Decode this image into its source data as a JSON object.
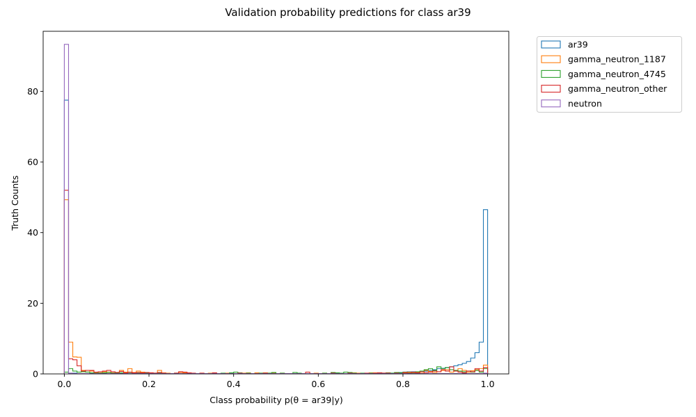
{
  "chart_data": {
    "type": "histogram",
    "title": "Validation probability predictions for class ar39",
    "xlabel": "Class probability p(θ = ar39|y)",
    "ylabel": "Truth Counts",
    "xlim": [
      -0.05,
      1.05
    ],
    "ylim": [
      0,
      97
    ],
    "xticks": [
      "0.0",
      "0.2",
      "0.4",
      "0.6",
      "0.8",
      "1.0"
    ],
    "xtick_values": [
      0.0,
      0.2,
      0.4,
      0.6,
      0.8,
      1.0
    ],
    "yticks": [
      "0",
      "20",
      "40",
      "60",
      "80"
    ],
    "ytick_values": [
      0,
      20,
      40,
      60,
      80
    ],
    "grid": false,
    "legend_position": "outside-top-right",
    "bin_width": 0.01,
    "series": [
      {
        "name": "ar39",
        "color": "#1f77b4",
        "values": [
          77.5,
          0.2,
          0.2,
          0.1,
          0.1,
          0.1,
          0.1,
          0.1,
          0.1,
          0.1,
          0.1,
          0.1,
          0.1,
          0.1,
          0.1,
          0.1,
          0.1,
          0.1,
          0.1,
          0.1,
          0.1,
          0.1,
          0.1,
          0.1,
          0.1,
          0.1,
          0.1,
          0.1,
          0.1,
          0.1,
          0.1,
          0.1,
          0.1,
          0.1,
          0.1,
          0.1,
          0.1,
          0.1,
          0.1,
          0.1,
          0.1,
          0.1,
          0.1,
          0.1,
          0.1,
          0.1,
          0.1,
          0.1,
          0.1,
          0.1,
          0.1,
          0.1,
          0.1,
          0.1,
          0.1,
          0.1,
          0.1,
          0.1,
          0.1,
          0.1,
          0.1,
          0.1,
          0.1,
          0.1,
          0.1,
          0.1,
          0.1,
          0.1,
          0.1,
          0.1,
          0.1,
          0.1,
          0.1,
          0.1,
          0.2,
          0.2,
          0.2,
          0.2,
          0.3,
          0.4,
          0.5,
          0.6,
          0.6,
          0.5,
          0.7,
          0.8,
          1.0,
          1.2,
          1.5,
          1.6,
          1.8,
          2.0,
          2.3,
          2.6,
          3.0,
          3.5,
          4.5,
          6.0,
          9.0,
          46.5
        ]
      },
      {
        "name": "gamma_neutron_1187",
        "color": "#ff7f0e",
        "values": [
          49.3,
          9.0,
          4.8,
          4.7,
          1.0,
          0.5,
          0.8,
          0.2,
          0.3,
          0.6,
          0.5,
          0.3,
          0.4,
          1.0,
          0.5,
          1.5,
          0.4,
          0.8,
          0.5,
          0.3,
          0.3,
          0.2,
          1.0,
          0.3,
          0.2,
          0.1,
          0.2,
          0.4,
          0.3,
          0.2,
          0.1,
          0.1,
          0.2,
          0.1,
          0.2,
          0.1,
          0.1,
          0.1,
          0.2,
          0.1,
          0.1,
          0.1,
          0.2,
          0.3,
          0.1,
          0.3,
          0.2,
          0.3,
          0.2,
          0.2,
          0.1,
          0.2,
          0.1,
          0.1,
          0.1,
          0.1,
          0.1,
          0.1,
          0.1,
          0.2,
          0.1,
          0.2,
          0.1,
          0.1,
          0.1,
          0.1,
          0.1,
          0.1,
          0.3,
          0.2,
          0.1,
          0.1,
          0.3,
          0.3,
          0.2,
          0.2,
          0.3,
          0.1,
          0.2,
          0.3,
          0.2,
          0.5,
          0.3,
          0.4,
          0.2,
          1.0,
          0.7,
          0.4,
          0.6,
          1.0,
          1.2,
          0.5,
          1.0,
          1.5,
          1.0,
          0.5,
          0.9,
          1.2,
          1.5,
          2.5
        ]
      },
      {
        "name": "gamma_neutron_4745",
        "color": "#2ca02c",
        "values": [
          0.5,
          1.5,
          0.8,
          0.5,
          0.6,
          0.5,
          0.3,
          0.4,
          0.2,
          0.3,
          0.4,
          0.2,
          0.2,
          0.3,
          0.2,
          0.2,
          0.2,
          0.3,
          0.2,
          0.2,
          0.1,
          0.2,
          0.2,
          0.1,
          0.1,
          0.1,
          0.2,
          0.1,
          0.1,
          0.1,
          0.1,
          0.1,
          0.1,
          0.1,
          0.1,
          0.1,
          0.1,
          0.2,
          0.1,
          0.3,
          0.5,
          0.3,
          0.1,
          0.2,
          0.1,
          0.1,
          0.2,
          0.2,
          0.2,
          0.4,
          0.1,
          0.2,
          0.1,
          0.1,
          0.4,
          0.2,
          0.1,
          0.1,
          0.1,
          0.1,
          0.1,
          0.2,
          0.1,
          0.4,
          0.3,
          0.2,
          0.5,
          0.4,
          0.2,
          0.1,
          0.2,
          0.1,
          0.2,
          0.1,
          0.3,
          0.1,
          0.3,
          0.2,
          0.4,
          0.3,
          0.5,
          0.3,
          0.4,
          0.6,
          0.8,
          1.2,
          1.5,
          1.0,
          2.0,
          1.5,
          1.8,
          1.2,
          1.0,
          0.8,
          0.6,
          0.8,
          0.5,
          1.0,
          0.5,
          1.5
        ]
      },
      {
        "name": "gamma_neutron_other",
        "color": "#d62728",
        "values": [
          52.0,
          4.3,
          4.0,
          2.3,
          0.8,
          1.0,
          1.0,
          0.5,
          0.6,
          0.8,
          1.0,
          0.6,
          0.4,
          0.7,
          0.3,
          0.5,
          0.3,
          0.4,
          0.3,
          0.4,
          0.3,
          0.2,
          0.4,
          0.2,
          0.1,
          0.1,
          0.2,
          0.6,
          0.5,
          0.3,
          0.2,
          0.1,
          0.2,
          0.1,
          0.1,
          0.3,
          0.1,
          0.1,
          0.1,
          0.1,
          0.1,
          0.2,
          0.1,
          0.1,
          0.1,
          0.1,
          0.1,
          0.2,
          0.1,
          0.1,
          0.1,
          0.1,
          0.1,
          0.1,
          0.1,
          0.1,
          0.1,
          0.5,
          0.1,
          0.1,
          0.1,
          0.1,
          0.1,
          0.2,
          0.1,
          0.1,
          0.1,
          0.2,
          0.1,
          0.1,
          0.1,
          0.2,
          0.1,
          0.2,
          0.3,
          0.2,
          0.2,
          0.1,
          0.2,
          0.1,
          0.4,
          0.2,
          0.5,
          0.3,
          0.6,
          0.4,
          0.5,
          0.8,
          0.6,
          1.2,
          0.8,
          2.0,
          0.8,
          0.5,
          0.3,
          0.8,
          0.6,
          1.5,
          0.8,
          1.8
        ]
      },
      {
        "name": "neutron",
        "color": "#9467bd",
        "values": [
          93.3,
          0.2,
          0.1,
          0.1,
          0.1,
          0.1,
          0.1,
          0.1,
          0.1,
          0.1,
          0.1,
          0.1,
          0.1,
          0.1,
          0.1,
          0.1,
          0.1,
          0.1,
          0.1,
          0.1,
          0.1,
          0.1,
          0.1,
          0.1,
          0.1,
          0.1,
          0.1,
          0.1,
          0.1,
          0.1,
          0.1,
          0.1,
          0.1,
          0.1,
          0.1,
          0.1,
          0.1,
          0.1,
          0.1,
          0.1,
          0.1,
          0.1,
          0.1,
          0.1,
          0.1,
          0.1,
          0.1,
          0.1,
          0.1,
          0.1,
          0.1,
          0.1,
          0.1,
          0.1,
          0.1,
          0.1,
          0.1,
          0.1,
          0.1,
          0.1,
          0.1,
          0.1,
          0.1,
          0.1,
          0.1,
          0.1,
          0.1,
          0.1,
          0.1,
          0.1,
          0.1,
          0.1,
          0.1,
          0.1,
          0.1,
          0.1,
          0.1,
          0.1,
          0.1,
          0.1,
          0.1,
          0.1,
          0.1,
          0.1,
          0.1,
          0.1,
          0.1,
          0.1,
          0.1,
          0.1,
          0.1,
          0.1,
          0.1,
          0.1,
          0.1,
          0.1,
          0.1,
          0.1,
          0.1,
          0.2
        ]
      }
    ]
  }
}
